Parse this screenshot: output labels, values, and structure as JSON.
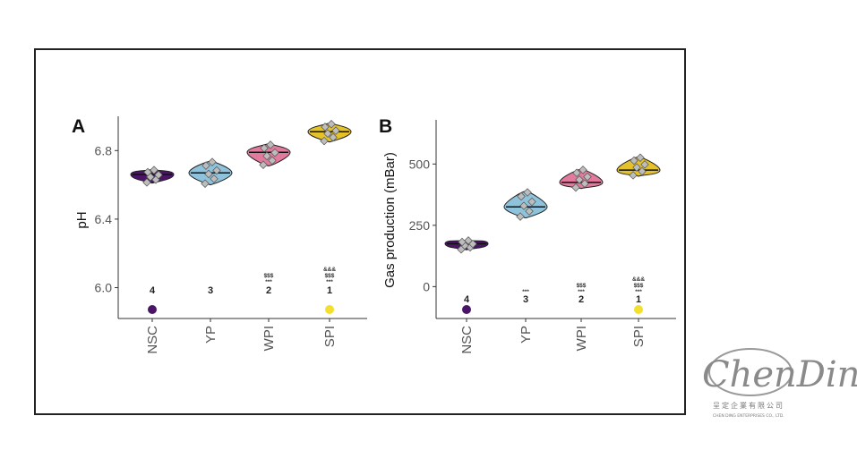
{
  "logo": {
    "script_text": "ChenDing",
    "chinese_text": "呈定企業有限公司",
    "english_text": "CHEN DING ENTERPRISES CO., LTD."
  },
  "colors": {
    "NSC": "#4b1566",
    "YP": "#8fc3dc",
    "WPI": "#e27a9e",
    "SPI": "#e3c22c",
    "point": "#bdbdbd",
    "axis": "#333333"
  },
  "chart_data": [
    {
      "type": "violin",
      "panel_label": "A",
      "title": "",
      "xlabel": "",
      "ylabel": "pH",
      "categories": [
        "NSC",
        "YP",
        "WPI",
        "SPI"
      ],
      "yticks": [
        6.0,
        6.4,
        6.8
      ],
      "ytick_labels": [
        "6.0",
        "6.4",
        "6.8"
      ],
      "ylim": [
        5.82,
        7.0
      ],
      "medians": [
        6.66,
        6.67,
        6.79,
        6.91
      ],
      "violin_ranges": [
        [
          6.61,
          6.69
        ],
        [
          6.6,
          6.74
        ],
        [
          6.71,
          6.84
        ],
        [
          6.85,
          6.96
        ]
      ],
      "ranks": [
        "4",
        "3",
        "2",
        "1"
      ],
      "significance_marks": [
        [],
        [],
        [
          "$$$",
          "***"
        ],
        [
          "&&&",
          "$$$",
          "***"
        ]
      ],
      "legend_dots": [
        {
          "category": "NSC",
          "color": "#4b1566"
        },
        {
          "category": "SPI",
          "color": "#f4df2c"
        }
      ],
      "grid": false
    },
    {
      "type": "violin",
      "panel_label": "B",
      "title": "",
      "xlabel": "",
      "ylabel": "Gas production (mBar)",
      "categories": [
        "NSC",
        "YP",
        "WPI",
        "SPI"
      ],
      "yticks": [
        0,
        250,
        500
      ],
      "ytick_labels": [
        "0",
        "250",
        "500"
      ],
      "ylim": [
        -130,
        680
      ],
      "medians": [
        175,
        325,
        425,
        475
      ],
      "violin_ranges": [
        [
          150,
          190
        ],
        [
          280,
          390
        ],
        [
          400,
          480
        ],
        [
          450,
          530
        ]
      ],
      "ranks": [
        "4",
        "3",
        "2",
        "1"
      ],
      "significance_marks": [
        [],
        [
          "***"
        ],
        [
          "$$$",
          "***"
        ],
        [
          "&&&",
          "$$$",
          "***"
        ]
      ],
      "legend_dots": [
        {
          "category": "NSC",
          "color": "#4b1566"
        },
        {
          "category": "SPI",
          "color": "#f4df2c"
        }
      ],
      "grid": false
    }
  ]
}
